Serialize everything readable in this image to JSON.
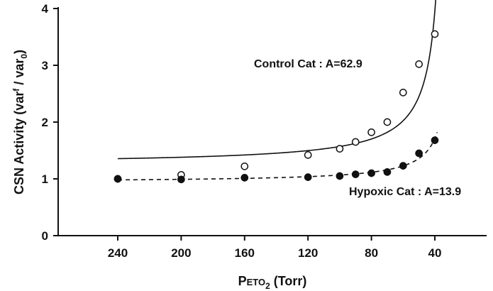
{
  "chart_data": {
    "type": "scatter",
    "xlabel": {
      "main": "P",
      "sub_caps": "ETO",
      "subscript": "2",
      "tail": " (Torr)"
    },
    "ylabel": {
      "main": "CSN Activity (var",
      "sup1": "f",
      "mid": " / var",
      "sub": "0",
      "tail": ")"
    },
    "xlim": [
      0,
      270
    ],
    "xaxis_reversed": true,
    "ylim": [
      0,
      4
    ],
    "x_ticks": [
      "240",
      "200",
      "160",
      "120",
      "80",
      "40"
    ],
    "x_tick_values": [
      240,
      200,
      160,
      120,
      80,
      40
    ],
    "y_ticks": [
      "0",
      "1",
      "2",
      "3",
      "4"
    ],
    "y_tick_values": [
      0,
      1,
      2,
      3,
      4
    ],
    "grid": false,
    "series": [
      {
        "name": "Control Cat",
        "label": "Control Cat : A=62.9",
        "marker": "open-circle",
        "line": "solid",
        "A": 62.9,
        "x": [
          240,
          200,
          160,
          120,
          100,
          90,
          80,
          70,
          60,
          50,
          40
        ],
        "y": [
          1.0,
          1.07,
          1.22,
          1.42,
          1.53,
          1.65,
          1.82,
          2.0,
          2.52,
          3.02,
          3.55
        ]
      },
      {
        "name": "Hypoxic Cat",
        "label": "Hypoxic Cat : A=13.9",
        "marker": "filled-circle",
        "line": "dashed",
        "A": 13.9,
        "x": [
          240,
          200,
          160,
          120,
          100,
          90,
          80,
          70,
          60,
          50,
          40
        ],
        "y": [
          1.0,
          0.99,
          1.02,
          1.03,
          1.05,
          1.08,
          1.1,
          1.12,
          1.23,
          1.45,
          1.68
        ]
      }
    ]
  }
}
